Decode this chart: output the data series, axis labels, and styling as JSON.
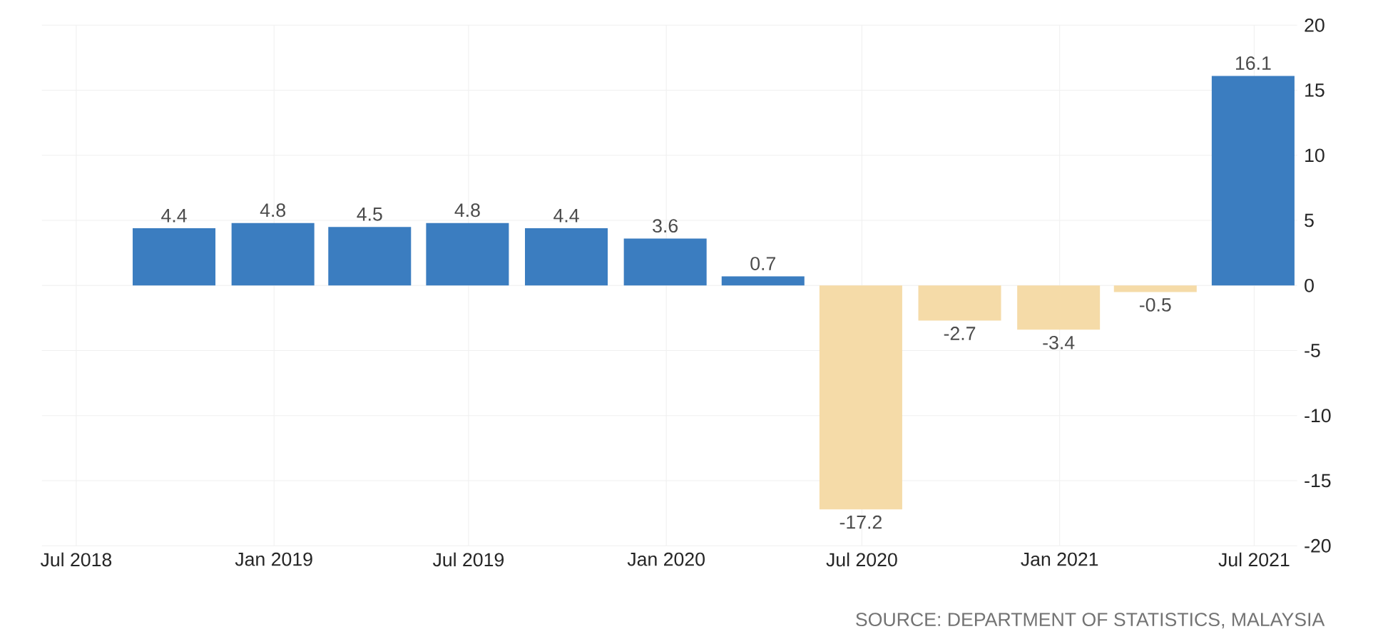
{
  "chart_data": {
    "type": "bar",
    "x": [
      "2018-09-30",
      "2018-12-31",
      "2019-03-31",
      "2019-06-30",
      "2019-09-30",
      "2019-12-31",
      "2020-03-31",
      "2020-06-30",
      "2020-09-30",
      "2020-12-31",
      "2021-03-31",
      "2021-06-30"
    ],
    "values": [
      4.4,
      4.8,
      4.5,
      4.8,
      4.4,
      3.6,
      0.7,
      -17.2,
      -2.7,
      -3.4,
      -0.5,
      16.1
    ],
    "colors": [
      "#3b7dc0",
      "#3b7dc0",
      "#3b7dc0",
      "#3b7dc0",
      "#3b7dc0",
      "#3b7dc0",
      "#3b7dc0",
      "#f5dba8",
      "#f5dba8",
      "#f5dba8",
      "#f5dba8",
      "#3b7dc0"
    ],
    "data_labels": true,
    "xlim": [
      "2018-05-30",
      "2021-08-10"
    ],
    "xticks": [
      {
        "value": "2018-07-01",
        "label": "Jul 2018"
      },
      {
        "value": "2019-01-01",
        "label": "Jan 2019"
      },
      {
        "value": "2019-07-01",
        "label": "Jul 2019"
      },
      {
        "value": "2020-01-01",
        "label": "Jan 2020"
      },
      {
        "value": "2020-07-01",
        "label": "Jul 2020"
      },
      {
        "value": "2021-01-01",
        "label": "Jan 2021"
      },
      {
        "value": "2021-07-01",
        "label": "Jul 2021"
      }
    ],
    "ylim": [
      -20,
      20
    ],
    "yticks": [
      -20,
      -15,
      -10,
      -5,
      0,
      5,
      10,
      15,
      20
    ],
    "grid": true,
    "annotations": [
      "SOURCE: DEPARTMENT OF STATISTICS, MALAYSIA"
    ]
  }
}
